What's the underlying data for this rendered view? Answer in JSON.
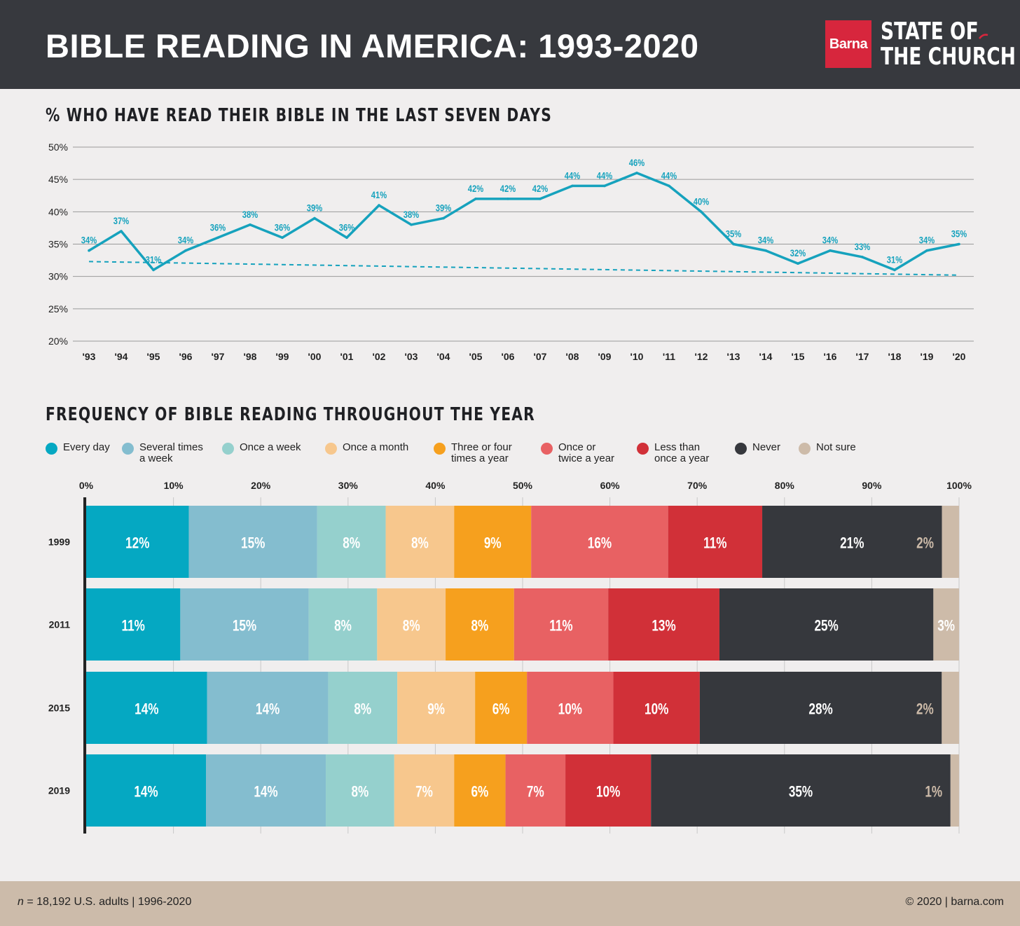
{
  "header": {
    "title": "BIBLE READING IN AMERICA: 1993-2020",
    "logo_brand": "Barna",
    "logo_line1": "STATE OF",
    "logo_line2": "THE CHURCH"
  },
  "colors": {
    "header_bg": "#37393e",
    "line": "#16a2bd",
    "background": "#f0eeee",
    "footer_bg": "#ccbbaa",
    "every_day": "#05a8c2",
    "several_times_a_week": "#84bdcf",
    "once_a_week": "#95d0cd",
    "once_a_month": "#f7c78d",
    "three_or_four_times_a_year": "#f6a01e",
    "once_or_twice_a_year": "#e86163",
    "less_than_once_a_year": "#d13038",
    "never": "#36383d",
    "not_sure": "#cdbba9"
  },
  "chart_data": [
    {
      "type": "line",
      "title": "% WHO HAVE READ THEIR BIBLE IN THE LAST SEVEN DAYS",
      "x": [
        "'93",
        "'94",
        "'95",
        "'96",
        "'97",
        "'98",
        "'99",
        "'00",
        "'01",
        "'02",
        "'03",
        "'04",
        "'05",
        "'06",
        "'07",
        "'08",
        "'09",
        "'10",
        "'11",
        "'12",
        "'13",
        "'14",
        "'15",
        "'16",
        "'17",
        "'18",
        "'19",
        "'20"
      ],
      "series": [
        {
          "values": [
            34,
            37,
            31,
            34,
            36,
            38,
            36,
            39,
            36,
            41,
            38,
            39,
            42,
            42,
            42,
            44,
            44,
            46,
            44,
            40,
            35,
            34,
            32,
            34,
            33,
            31,
            34,
            35
          ],
          "labels": [
            "34%",
            "37%",
            "31%",
            "34%",
            "36%",
            "38%",
            "36%",
            "39%",
            "36%",
            "41%",
            "38%",
            "39%",
            "42%",
            "42%",
            "42%",
            "44%",
            "44%",
            "46%",
            "44%",
            "40%",
            "35%",
            "34%",
            "32%",
            "34%",
            "33%",
            "31%",
            "34%",
            "35%"
          ]
        }
      ],
      "trendline": {
        "style": "dashed",
        "start": 32.3,
        "end": 30.2
      },
      "ylim": [
        20,
        50
      ],
      "yticks": [
        "20%",
        "25%",
        "30%",
        "35%",
        "40%",
        "45%",
        "50%"
      ],
      "grid": true
    },
    {
      "type": "bar",
      "orientation": "horizontal",
      "stacked": true,
      "title": "FREQUENCY OF BIBLE READING THROUGHOUT THE YEAR",
      "categories": [
        "1999",
        "2011",
        "2015",
        "2019"
      ],
      "xlim": [
        0,
        100
      ],
      "xticks": [
        "0%",
        "10%",
        "20%",
        "30%",
        "40%",
        "50%",
        "60%",
        "70%",
        "80%",
        "90%",
        "100%"
      ],
      "series": [
        {
          "name": "Every day",
          "values": [
            12,
            11,
            14,
            14
          ],
          "labels": [
            "12%",
            "11%",
            "14%",
            "14%"
          ]
        },
        {
          "name": "Several times\na week",
          "values": [
            15,
            15,
            14,
            14
          ],
          "labels": [
            "15%",
            "15%",
            "14%",
            "14%"
          ]
        },
        {
          "name": "Once a week",
          "values": [
            8,
            8,
            8,
            8
          ],
          "labels": [
            "8%",
            "8%",
            "8%",
            "8%"
          ]
        },
        {
          "name": "Once a month",
          "values": [
            8,
            8,
            9,
            7
          ],
          "labels": [
            "8%",
            "8%",
            "9%",
            "7%"
          ]
        },
        {
          "name": "Three or four\ntimes a year",
          "values": [
            9,
            8,
            6,
            6
          ],
          "labels": [
            "9%",
            "8%",
            "6%",
            "6%"
          ]
        },
        {
          "name": "Once or\ntwice a year",
          "values": [
            16,
            11,
            10,
            7
          ],
          "labels": [
            "16%",
            "11%",
            "10%",
            "7%"
          ]
        },
        {
          "name": "Less than\nonce a year",
          "values": [
            11,
            13,
            10,
            10
          ],
          "labels": [
            "11%",
            "13%",
            "10%",
            "10%"
          ]
        },
        {
          "name": "Never",
          "values": [
            21,
            25,
            28,
            35
          ],
          "labels": [
            "21%",
            "25%",
            "28%",
            "35%"
          ]
        },
        {
          "name": "Not sure",
          "values": [
            2,
            3,
            2,
            1
          ],
          "labels": [
            "2%",
            "3%",
            "2%",
            "1%"
          ]
        }
      ],
      "legend": "top"
    }
  ],
  "footer": {
    "sample_prefix": "n",
    "sample_rest": " = 18,192 U.S. adults | 1996-2020",
    "copyright": "© 2020 | barna.com"
  }
}
